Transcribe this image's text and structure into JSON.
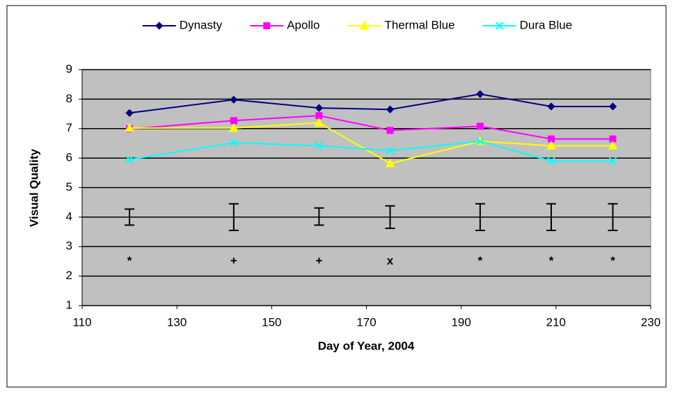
{
  "chart_data": {
    "type": "line",
    "x_label": "Day of Year, 2004",
    "y_label": "Visual Quality",
    "x": [
      120,
      142,
      160,
      175,
      194,
      209,
      222
    ],
    "series": [
      {
        "name": "Dynasty",
        "color": "#000080",
        "marker": "diamond",
        "values": [
          7.53,
          7.98,
          7.7,
          7.65,
          8.17,
          7.75,
          7.75
        ]
      },
      {
        "name": "Apollo",
        "color": "#FF00FF",
        "marker": "square",
        "values": [
          6.99,
          7.27,
          7.44,
          6.94,
          7.08,
          6.65,
          6.65
        ]
      },
      {
        "name": "Thermal Blue",
        "color": "#FFFF00",
        "marker": "triangle",
        "values": [
          7.02,
          7.02,
          7.2,
          5.82,
          6.57,
          6.42,
          6.42
        ]
      },
      {
        "name": "Dura Blue",
        "color": "#00FFFF",
        "marker": "x",
        "values": [
          5.95,
          6.52,
          6.42,
          6.25,
          6.57,
          5.9,
          5.9
        ]
      }
    ],
    "error_bars": {
      "center": [
        4.0,
        4.0,
        4.02,
        4.0,
        4.0,
        4.0,
        4.0
      ],
      "error": [
        0.27,
        0.45,
        0.29,
        0.38,
        0.45,
        0.45,
        0.45
      ],
      "color": "#000000"
    },
    "annotations": [
      {
        "text": "*",
        "x": 120,
        "y": 2.5
      },
      {
        "text": "+",
        "x": 142,
        "y": 2.5
      },
      {
        "text": "+",
        "x": 160,
        "y": 2.5
      },
      {
        "text": "x",
        "x": 175,
        "y": 2.5
      },
      {
        "text": "*",
        "x": 194,
        "y": 2.5
      },
      {
        "text": "*",
        "x": 209,
        "y": 2.5
      },
      {
        "text": "*",
        "x": 222,
        "y": 2.5
      }
    ],
    "xlim": [
      110,
      230
    ],
    "xticks": [
      110,
      130,
      150,
      170,
      190,
      210,
      230
    ],
    "ylim": [
      1,
      9
    ],
    "yticks": [
      1,
      2,
      3,
      4,
      5,
      6,
      7,
      8,
      9
    ],
    "grid": true,
    "legend": "top",
    "plot_background": "#C0C0C0"
  }
}
